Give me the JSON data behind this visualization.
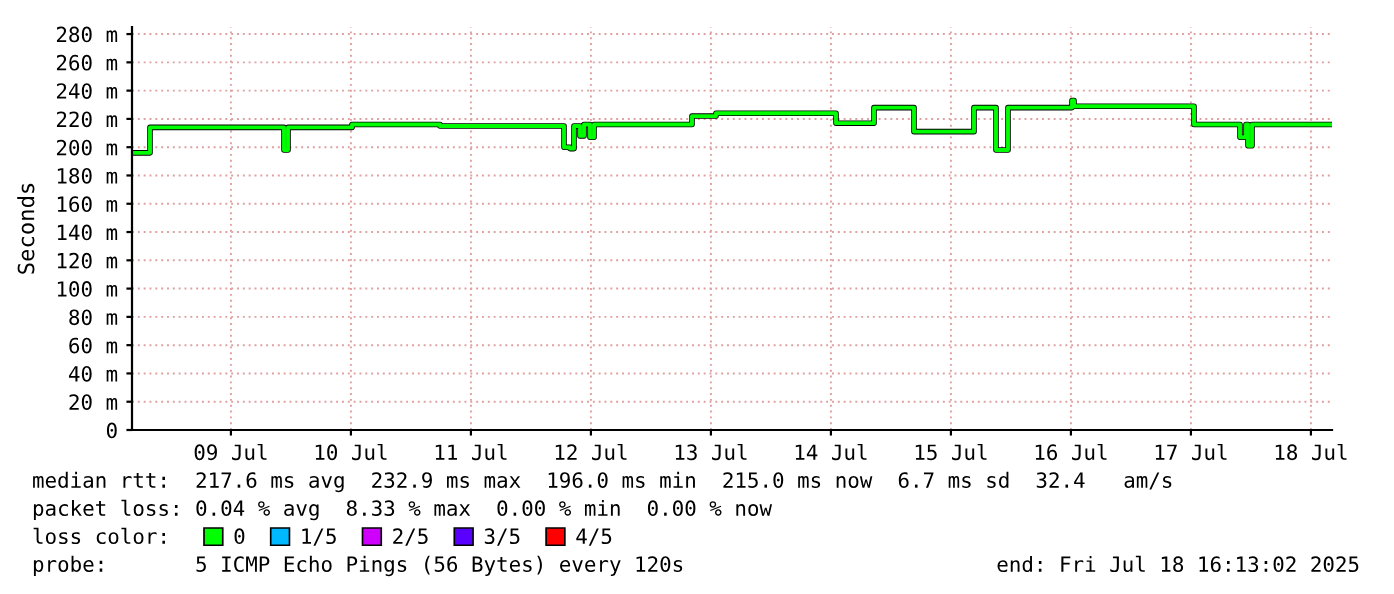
{
  "chart_data": {
    "type": "step",
    "ylabel": "Seconds",
    "x": [
      "2025-07-08T16:13",
      "2025-07-08T19:49",
      "2025-07-09T22:37",
      "2025-07-09T23:25",
      "2025-07-10T12:13",
      "2025-07-11T05:49",
      "2025-07-12T06:37",
      "2025-07-12T07:49",
      "2025-07-12T08:37",
      "2025-07-12T09:49",
      "2025-07-12T10:37",
      "2025-07-12T11:49",
      "2025-07-12T12:37",
      "2025-07-13T08:13",
      "2025-07-13T13:01",
      "2025-07-14T13:01",
      "2025-07-14T20:37",
      "2025-07-15T04:37",
      "2025-07-15T16:37",
      "2025-07-15T21:01",
      "2025-07-15T23:25",
      "2025-07-16T12:13",
      "2025-07-16T12:37",
      "2025-07-17T12:37",
      "2025-07-17T21:49",
      "2025-07-17T23:01",
      "2025-07-17T23:25",
      "2025-07-18T00:13",
      "2025-07-18T16:13"
    ],
    "series": [
      {
        "name": "0",
        "color": "#00ff00",
        "values": [
          196,
          214,
          198,
          214,
          216,
          215,
          200,
          199,
          215,
          208,
          216,
          207,
          216,
          222,
          224,
          217,
          228,
          211,
          228,
          198,
          228,
          233,
          229,
          216,
          207,
          216,
          201,
          216,
          216
        ]
      },
      {
        "name": "1/5",
        "color": "#00b8ff",
        "values": [
          null,
          null,
          null,
          null,
          null,
          null,
          null,
          null,
          null,
          null,
          null,
          null,
          null,
          null,
          null,
          null,
          null,
          null,
          null,
          null,
          null,
          null,
          null,
          null,
          null,
          null,
          null,
          null,
          null
        ]
      },
      {
        "name": "2/5",
        "color": "#d000ff",
        "values": [
          null,
          null,
          null,
          null,
          null,
          null,
          null,
          null,
          null,
          null,
          null,
          null,
          null,
          null,
          null,
          null,
          null,
          null,
          null,
          null,
          null,
          null,
          null,
          null,
          null,
          null,
          null,
          null,
          null
        ]
      },
      {
        "name": "3/5",
        "color": "#5a00ff",
        "values": [
          null,
          null,
          null,
          null,
          null,
          null,
          null,
          null,
          null,
          null,
          null,
          null,
          null,
          null,
          null,
          null,
          null,
          null,
          null,
          null,
          null,
          null,
          null,
          null,
          null,
          null,
          null,
          null,
          null
        ]
      },
      {
        "name": "4/5",
        "color": "#ff0000",
        "values": [
          null,
          null,
          null,
          null,
          null,
          null,
          null,
          null,
          null,
          null,
          null,
          null,
          null,
          null,
          null,
          null,
          null,
          null,
          null,
          null,
          null,
          null,
          null,
          null,
          null,
          null,
          null,
          null,
          null
        ]
      }
    ],
    "legend_title": "loss color:",
    "legend": "bottom",
    "xlim": [
      "2025-07-08T16:13",
      "2025-07-18T16:13"
    ],
    "xticks": [
      {
        "value": "2025-07-09T12:00",
        "label": "09 Jul"
      },
      {
        "value": "2025-07-10T12:00",
        "label": "10 Jul"
      },
      {
        "value": "2025-07-11T12:00",
        "label": "11 Jul"
      },
      {
        "value": "2025-07-12T12:00",
        "label": "12 Jul"
      },
      {
        "value": "2025-07-13T12:00",
        "label": "13 Jul"
      },
      {
        "value": "2025-07-14T12:00",
        "label": "14 Jul"
      },
      {
        "value": "2025-07-15T12:00",
        "label": "15 Jul"
      },
      {
        "value": "2025-07-16T12:00",
        "label": "16 Jul"
      },
      {
        "value": "2025-07-17T12:00",
        "label": "17 Jul"
      },
      {
        "value": "2025-07-18T12:00",
        "label": "18 Jul"
      }
    ],
    "ylim": [
      0,
      285
    ],
    "yticks": [
      0,
      {
        "value": 20,
        "label": "20 m"
      },
      {
        "value": 40,
        "label": "40 m"
      },
      {
        "value": 60,
        "label": "60 m"
      },
      {
        "value": 80,
        "label": "80 m"
      },
      {
        "value": 100,
        "label": "100 m"
      },
      {
        "value": 120,
        "label": "120 m"
      },
      {
        "value": 140,
        "label": "140 m"
      },
      {
        "value": 160,
        "label": "160 m"
      },
      {
        "value": 180,
        "label": "180 m"
      },
      {
        "value": 200,
        "label": "200 m"
      },
      {
        "value": 220,
        "label": "220 m"
      },
      {
        "value": 240,
        "label": "240 m"
      },
      {
        "value": 260,
        "label": "260 m"
      },
      {
        "value": 280,
        "label": "280 m"
      }
    ],
    "grid": true,
    "annotations": [
      "median rtt:  217.6 ms avg  232.9 ms max  196.0 ms min  215.0 ms now  6.7 ms sd  32.4   am/s",
      "packet loss: 0.04 % avg  8.33 % max  0.00 % min  0.00 % now",
      "probe:       5 ICMP Echo Pings (56 Bytes) every 120s",
      "end: Fri Jul 18 16:13:02 2025"
    ]
  }
}
